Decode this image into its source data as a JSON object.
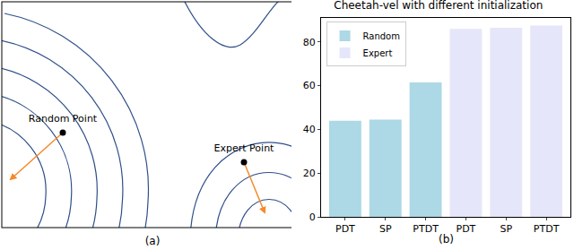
{
  "diagram": {
    "caption": "(a)",
    "points": [
      {
        "label": "Random Point"
      },
      {
        "label": "Expert Point"
      }
    ]
  },
  "chart_data": {
    "type": "bar",
    "title": "Cheetah-vel with different initialization",
    "caption": "(b)",
    "categories": [
      "PDT",
      "SP",
      "PTDT",
      "PDT",
      "SP",
      "PTDT"
    ],
    "series": [
      {
        "name": "Random",
        "color": "#add8e6",
        "values": [
          44,
          44.5,
          61.5,
          null,
          null,
          null
        ]
      },
      {
        "name": "Expert",
        "color": "#e6e6fa",
        "values": [
          null,
          null,
          null,
          86,
          86.5,
          87.5
        ]
      }
    ],
    "ylim": [
      0,
      91
    ],
    "yticks": [
      0,
      20,
      40,
      60,
      80
    ],
    "grid": false,
    "legend": "top left"
  }
}
